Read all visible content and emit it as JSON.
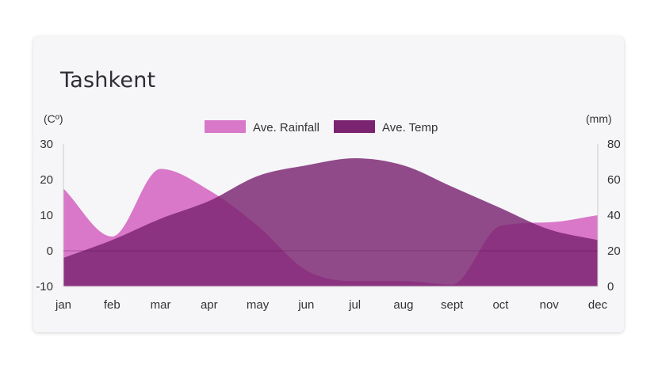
{
  "chart_data": {
    "type": "area",
    "title": "Tashkent",
    "categories": [
      "jan",
      "feb",
      "mar",
      "apr",
      "may",
      "jun",
      "jul",
      "aug",
      "sept",
      "oct",
      "nov",
      "dec"
    ],
    "series": [
      {
        "name": "Ave. Rainfall",
        "axis": "right",
        "color": "#d977c8",
        "values": [
          55,
          28,
          66,
          54,
          34,
          9,
          3,
          3,
          1,
          34,
          36,
          40
        ]
      },
      {
        "name": "Ave. Temp",
        "axis": "left",
        "color": "#7a2370",
        "values": [
          -2,
          3,
          9,
          14,
          21,
          24,
          26,
          24,
          18,
          12,
          6,
          3
        ]
      }
    ],
    "y_left": {
      "label": "(Cº)",
      "ylim": [
        -10,
        30
      ],
      "ticks": [
        "30",
        "20",
        "10",
        "0",
        "-10"
      ]
    },
    "y_right": {
      "label": "(mm)",
      "ylim": [
        0,
        80
      ],
      "ticks": [
        "80",
        "60",
        "40",
        "20",
        "0"
      ]
    },
    "legend_position": "top-center",
    "grid": false
  }
}
